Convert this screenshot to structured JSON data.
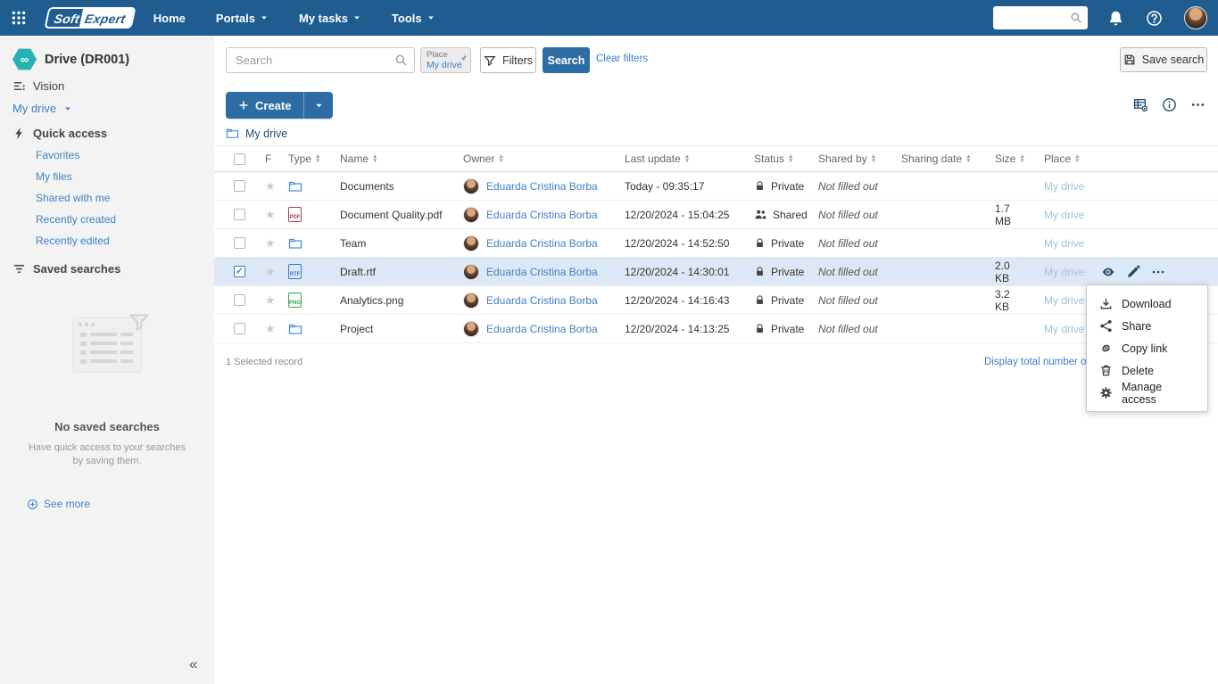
{
  "navbar": {
    "brand_soft": "Soft",
    "brand_expert": "Expert",
    "items": [
      {
        "label": "Home",
        "caret": false
      },
      {
        "label": "Portals",
        "caret": true
      },
      {
        "label": "My tasks",
        "caret": true
      },
      {
        "label": "Tools",
        "caret": true
      }
    ],
    "search_value": "",
    "icons": [
      "apps-grid-icon",
      "search-icon",
      "notifications-bell-icon",
      "help-icon",
      "user-avatar"
    ]
  },
  "sidebar": {
    "title": "Drive (DR001)",
    "vision": "Vision",
    "my_drive": "My drive",
    "quick_access_title": "Quick access",
    "quick_access_items": [
      "Favorites",
      "My files",
      "Shared with me",
      "Recently created",
      "Recently edited"
    ],
    "saved_searches_title": "Saved searches",
    "no_saved_title": "No saved searches",
    "no_saved_caption": "Have quick access to your searches by saving them.",
    "see_more": "See more"
  },
  "toolbar": {
    "search_placeholder": "Search",
    "place_label": "Place",
    "place_value": "My drive",
    "filters": "Filters",
    "search": "Search",
    "clear_filters": "Clear filters",
    "save_search": "Save search",
    "create": "Create"
  },
  "breadcrumb": {
    "current": "My drive"
  },
  "table": {
    "columns": {
      "favorite": "F",
      "type": "Type",
      "name": "Name",
      "owner": "Owner",
      "last_update": "Last update",
      "status": "Status",
      "shared_by": "Shared by",
      "sharing_date": "Sharing date",
      "size": "Size",
      "place": "Place"
    },
    "rows": [
      {
        "selected": false,
        "type_icon": "folder-icon",
        "type_label": "",
        "name": "Documents",
        "owner": "Eduarda Cristina Borba",
        "last_update": "Today - 09:35:17",
        "status": "Private",
        "status_icon": "lock",
        "shared_by": "Not filled out",
        "sharing_date": "",
        "size": "",
        "place": "My drive"
      },
      {
        "selected": false,
        "type_icon": "pdf-file-icon",
        "type_label": "PDF",
        "name": "Document Quality.pdf",
        "owner": "Eduarda Cristina Borba",
        "last_update": "12/20/2024 - 15:04:25",
        "status": "Shared",
        "status_icon": "people",
        "shared_by": "Not filled out",
        "sharing_date": "",
        "size": "1.7 MB",
        "place": "My drive"
      },
      {
        "selected": false,
        "type_icon": "folder-icon",
        "type_label": "",
        "name": "Team",
        "owner": "Eduarda Cristina Borba",
        "last_update": "12/20/2024 - 14:52:50",
        "status": "Private",
        "status_icon": "lock",
        "shared_by": "Not filled out",
        "sharing_date": "",
        "size": "",
        "place": "My drive"
      },
      {
        "selected": true,
        "type_icon": "rtf-file-icon",
        "type_label": "RTF",
        "name": "Draft.rtf",
        "owner": "Eduarda Cristina Borba",
        "last_update": "12/20/2024 - 14:30:01",
        "status": "Private",
        "status_icon": "lock",
        "shared_by": "Not filled out",
        "sharing_date": "",
        "size": "2.0 KB",
        "place": "My drive"
      },
      {
        "selected": false,
        "type_icon": "png-file-icon",
        "type_label": "PNG",
        "name": "Analytics.png",
        "owner": "Eduarda Cristina Borba",
        "last_update": "12/20/2024 - 14:16:43",
        "status": "Private",
        "status_icon": "lock",
        "shared_by": "Not filled out",
        "sharing_date": "",
        "size": "3.2 KB",
        "place": "My drive"
      },
      {
        "selected": false,
        "type_icon": "folder-icon",
        "type_label": "",
        "name": "Project",
        "owner": "Eduarda Cristina Borba",
        "last_update": "12/20/2024 - 14:13:25",
        "status": "Private",
        "status_icon": "lock",
        "shared_by": "Not filled out",
        "sharing_date": "",
        "size": "",
        "place": "My drive"
      }
    ],
    "selected_summary": "1 Selected record",
    "display_total_link": "Display total number of records",
    "row_action_icons": [
      "eye-icon",
      "pencil-edit-icon",
      "ellipsis-more-icon"
    ],
    "toolbar_icons": [
      "table-settings-icon",
      "info-icon",
      "ellipsis-more-icon"
    ]
  },
  "context_menu": {
    "items": [
      {
        "icon": "download-icon",
        "label": "Download"
      },
      {
        "icon": "share-icon",
        "label": "Share"
      },
      {
        "icon": "copy-link-icon",
        "label": "Copy link"
      },
      {
        "icon": "delete-trash-icon",
        "label": "Delete"
      },
      {
        "icon": "manage-access-gear-icon",
        "label": "Manage access"
      }
    ]
  },
  "colors": {
    "navbar": "#1f5c8f",
    "primary_button": "#2e6da4",
    "link": "#3a7cc4",
    "selected_row": "#dce8f5",
    "place_link": "#9dbfdf",
    "drive_icon": "#26b2b5"
  }
}
